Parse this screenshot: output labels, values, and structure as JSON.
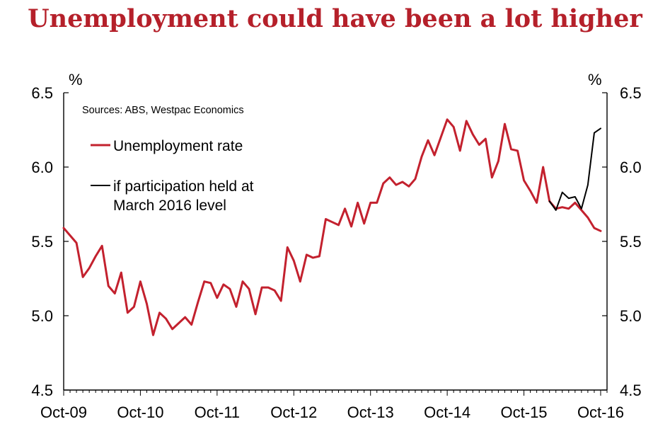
{
  "chart_data": {
    "type": "line",
    "title": "Unemployment could have been a lot higher",
    "source": "Sources: ABS, Westpac Economics",
    "y_unit_left": "%",
    "y_unit_right": "%",
    "ylim": [
      4.5,
      6.5
    ],
    "yticks": [
      "4.5",
      "5.0",
      "5.5",
      "6.0",
      "6.5"
    ],
    "xlim": [
      "2009-10",
      "2016-11"
    ],
    "xticks": [
      {
        "date": "2009-10",
        "label": "Oct-09"
      },
      {
        "date": "2010-10",
        "label": "Oct-10"
      },
      {
        "date": "2011-10",
        "label": "Oct-11"
      },
      {
        "date": "2012-10",
        "label": "Oct-12"
      },
      {
        "date": "2013-10",
        "label": "Oct-13"
      },
      {
        "date": "2014-10",
        "label": "Oct-14"
      },
      {
        "date": "2015-10",
        "label": "Oct-15"
      },
      {
        "date": "2016-10",
        "label": "Oct-16"
      }
    ],
    "grid": false,
    "legend_position": "top-left",
    "series": [
      {
        "name": "Unemployment rate",
        "color": "#c3212e",
        "points": [
          [
            "2009-10",
            5.59
          ],
          [
            "2009-11",
            5.54
          ],
          [
            "2009-12",
            5.49
          ],
          [
            "2010-01",
            5.26
          ],
          [
            "2010-02",
            5.32
          ],
          [
            "2010-03",
            5.4
          ],
          [
            "2010-04",
            5.47
          ],
          [
            "2010-05",
            5.2
          ],
          [
            "2010-06",
            5.15
          ],
          [
            "2010-07",
            5.29
          ],
          [
            "2010-08",
            5.02
          ],
          [
            "2010-09",
            5.06
          ],
          [
            "2010-10",
            5.23
          ],
          [
            "2010-11",
            5.08
          ],
          [
            "2010-12",
            4.87
          ],
          [
            "2011-01",
            5.02
          ],
          [
            "2011-02",
            4.98
          ],
          [
            "2011-03",
            4.91
          ],
          [
            "2011-04",
            4.95
          ],
          [
            "2011-05",
            4.99
          ],
          [
            "2011-06",
            4.94
          ],
          [
            "2011-07",
            5.09
          ],
          [
            "2011-08",
            5.23
          ],
          [
            "2011-09",
            5.22
          ],
          [
            "2011-10",
            5.12
          ],
          [
            "2011-11",
            5.21
          ],
          [
            "2011-12",
            5.18
          ],
          [
            "2012-01",
            5.06
          ],
          [
            "2012-02",
            5.23
          ],
          [
            "2012-03",
            5.18
          ],
          [
            "2012-04",
            5.01
          ],
          [
            "2012-05",
            5.19
          ],
          [
            "2012-06",
            5.19
          ],
          [
            "2012-07",
            5.17
          ],
          [
            "2012-08",
            5.1
          ],
          [
            "2012-09",
            5.46
          ],
          [
            "2012-10",
            5.37
          ],
          [
            "2012-11",
            5.23
          ],
          [
            "2012-12",
            5.41
          ],
          [
            "2013-01",
            5.39
          ],
          [
            "2013-02",
            5.4
          ],
          [
            "2013-03",
            5.65
          ],
          [
            "2013-04",
            5.63
          ],
          [
            "2013-05",
            5.61
          ],
          [
            "2013-06",
            5.72
          ],
          [
            "2013-07",
            5.6
          ],
          [
            "2013-08",
            5.76
          ],
          [
            "2013-09",
            5.62
          ],
          [
            "2013-10",
            5.76
          ],
          [
            "2013-11",
            5.76
          ],
          [
            "2013-12",
            5.89
          ],
          [
            "2014-01",
            5.93
          ],
          [
            "2014-02",
            5.88
          ],
          [
            "2014-03",
            5.9
          ],
          [
            "2014-04",
            5.87
          ],
          [
            "2014-05",
            5.92
          ],
          [
            "2014-06",
            6.07
          ],
          [
            "2014-07",
            6.18
          ],
          [
            "2014-08",
            6.08
          ],
          [
            "2014-09",
            6.2
          ],
          [
            "2014-10",
            6.32
          ],
          [
            "2014-11",
            6.27
          ],
          [
            "2014-12",
            6.11
          ],
          [
            "2015-01",
            6.31
          ],
          [
            "2015-02",
            6.22
          ],
          [
            "2015-03",
            6.15
          ],
          [
            "2015-04",
            6.19
          ],
          [
            "2015-05",
            5.93
          ],
          [
            "2015-06",
            6.04
          ],
          [
            "2015-07",
            6.29
          ],
          [
            "2015-08",
            6.12
          ],
          [
            "2015-09",
            6.11
          ],
          [
            "2015-10",
            5.91
          ],
          [
            "2015-11",
            5.84
          ],
          [
            "2015-12",
            5.76
          ],
          [
            "2016-01",
            6.0
          ],
          [
            "2016-02",
            5.77
          ],
          [
            "2016-03",
            5.72
          ],
          [
            "2016-04",
            5.73
          ],
          [
            "2016-05",
            5.72
          ],
          [
            "2016-06",
            5.76
          ],
          [
            "2016-07",
            5.71
          ],
          [
            "2016-08",
            5.66
          ],
          [
            "2016-09",
            5.59
          ],
          [
            "2016-10",
            5.57
          ]
        ]
      },
      {
        "name": "if participation held at March 2016 level",
        "name_lines": [
          "if participation held at",
          "March 2016 level"
        ],
        "color": "#000000",
        "points": [
          [
            "2016-02",
            5.77
          ],
          [
            "2016-03",
            5.71
          ],
          [
            "2016-04",
            5.83
          ],
          [
            "2016-05",
            5.79
          ],
          [
            "2016-06",
            5.8
          ],
          [
            "2016-07",
            5.72
          ],
          [
            "2016-08",
            5.88
          ],
          [
            "2016-09",
            6.23
          ],
          [
            "2016-10",
            6.26
          ]
        ]
      }
    ]
  }
}
